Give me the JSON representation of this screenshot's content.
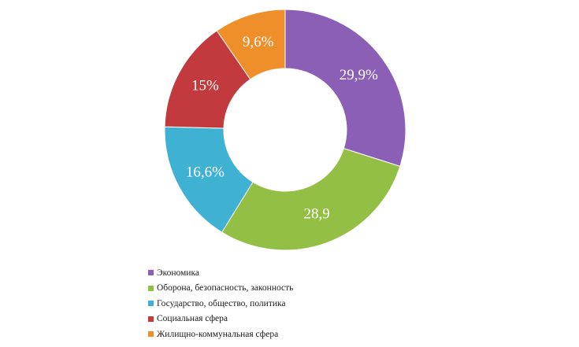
{
  "chart_data": {
    "type": "pie",
    "variant": "donut",
    "legend_position": "bottom",
    "categories": [
      "Экономика",
      "Оборона, безопасность, законность",
      "Государство, общество, политика",
      "Социальная сфера",
      "Жилищно-коммунальная сфера"
    ],
    "values": [
      29.9,
      28.9,
      16.6,
      15,
      9.6
    ],
    "data_labels": [
      "29,9%",
      "28,9",
      "16,6%",
      "15%",
      "9,6%"
    ],
    "colors": [
      "#8a5fb5",
      "#93bf45",
      "#3fb2d3",
      "#c23a3d",
      "#ee8f2a"
    ]
  }
}
